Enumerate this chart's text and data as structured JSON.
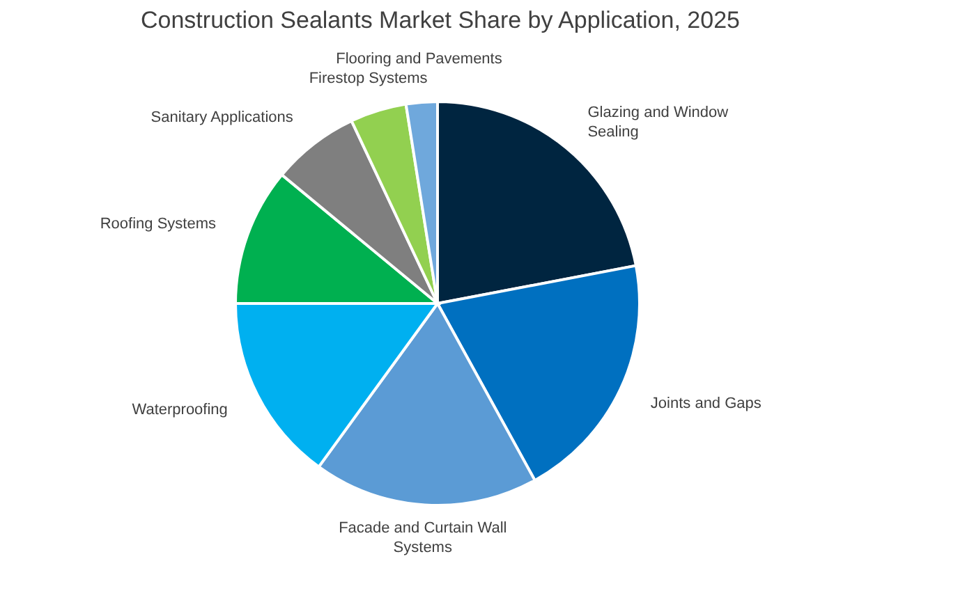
{
  "chart_data": {
    "type": "pie",
    "title": "Construction Sealants Market Share by Application, 2025",
    "categories": [
      "Glazing and Window Sealing",
      "Joints and Gaps",
      "Facade and Curtain Wall Systems",
      "Waterproofing",
      "Roofing Systems",
      "Sanitary Applications",
      "Firestop Systems",
      "Flooring and Pavements"
    ],
    "values": [
      22,
      20,
      18,
      15,
      11,
      7,
      4.5,
      2.5
    ],
    "colors": [
      "#002540",
      "#0070c0",
      "#5b9bd5",
      "#00b0f0",
      "#00b050",
      "#7f7f7f",
      "#92d050",
      "#6fa8dc"
    ]
  }
}
